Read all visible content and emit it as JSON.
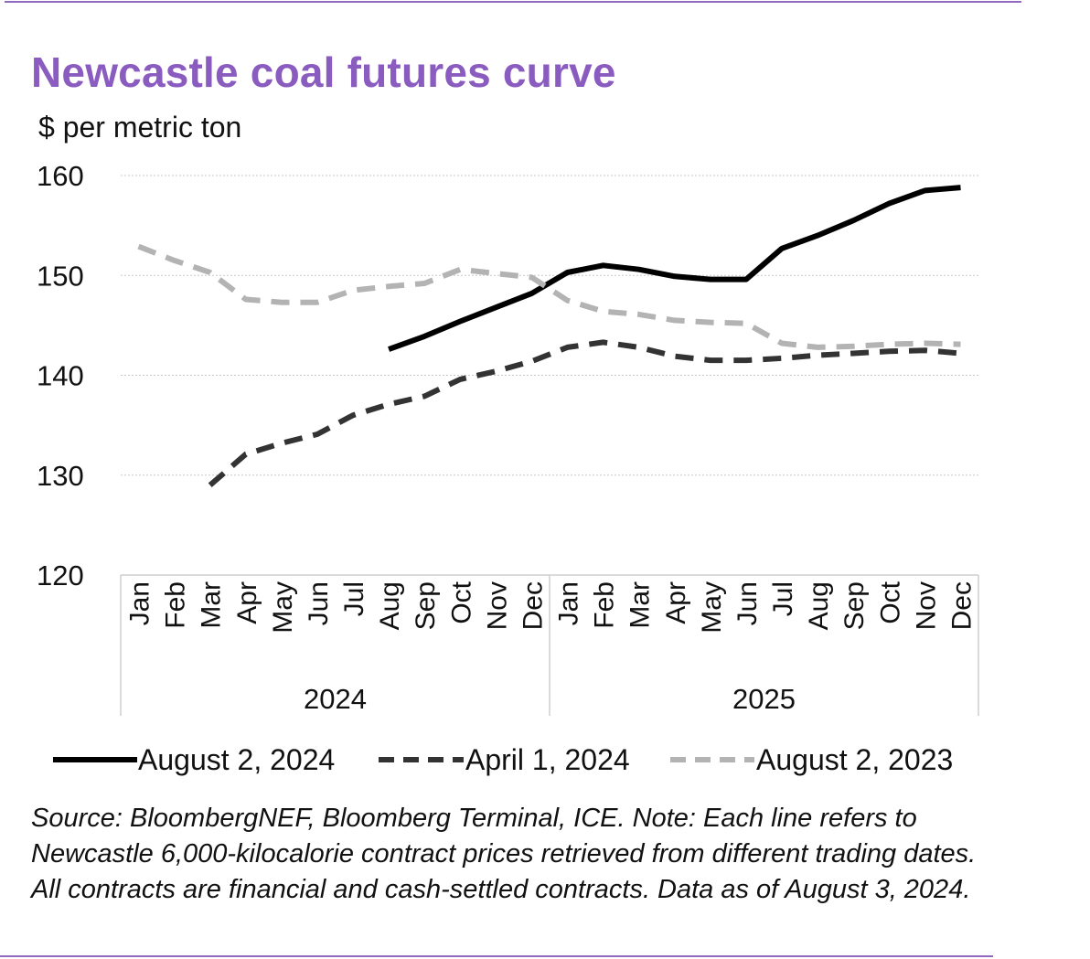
{
  "title": "Newcastle coal futures curve",
  "source_note": "Source: BloombergNEF, Bloomberg Terminal, ICE. Note: Each line refers to Newcastle 6,000-kilocalorie contract prices retrieved from different trading dates. All contracts are financial and cash-settled contracts. Data as of August 3, 2024.",
  "colors": {
    "title": "#8b5cc0",
    "rule": "#9169c0",
    "gridline": "#c8c8c8",
    "axis": "#cfcfcf",
    "text": "#111111"
  },
  "chart_data": {
    "type": "line",
    "title": "Newcastle coal futures curve",
    "ylabel": "$ per metric ton",
    "xlabel": "",
    "ylim": [
      120,
      160
    ],
    "yticks": [
      120,
      130,
      140,
      150,
      160
    ],
    "grid": true,
    "legend_position": "bottom",
    "categories": [
      "Jan",
      "Feb",
      "Mar",
      "Apr",
      "May",
      "Jun",
      "Jul",
      "Aug",
      "Sep",
      "Oct",
      "Nov",
      "Dec",
      "Jan",
      "Feb",
      "Mar",
      "Apr",
      "May",
      "Jun",
      "Jul",
      "Aug",
      "Sep",
      "Oct",
      "Nov",
      "Dec"
    ],
    "year_groups": [
      {
        "label": "2024",
        "count": 12
      },
      {
        "label": "2025",
        "count": 12
      }
    ],
    "series": [
      {
        "name": "August 2, 2024",
        "color": "#000000",
        "dash": "solid",
        "values": [
          null,
          null,
          null,
          null,
          null,
          null,
          null,
          142.6,
          143.9,
          145.4,
          146.8,
          148.2,
          150.3,
          151.0,
          150.6,
          149.9,
          149.6,
          149.6,
          152.7,
          154.0,
          155.5,
          157.2,
          158.5,
          158.8
        ]
      },
      {
        "name": "April 1, 2024",
        "color": "#333333",
        "dash": "dashed",
        "values": [
          null,
          null,
          129.0,
          132.1,
          133.2,
          134.1,
          136.0,
          137.1,
          137.9,
          139.6,
          140.4,
          141.4,
          142.8,
          143.3,
          142.8,
          141.9,
          141.5,
          141.5,
          141.7,
          142.0,
          142.2,
          142.4,
          142.5,
          142.2
        ]
      },
      {
        "name": "August 2, 2023",
        "color": "#b3b3b3",
        "dash": "dashed",
        "values": [
          152.9,
          151.5,
          150.3,
          147.6,
          147.3,
          147.3,
          148.5,
          148.9,
          149.2,
          150.6,
          150.2,
          149.8,
          147.5,
          146.4,
          146.1,
          145.5,
          145.3,
          145.2,
          143.2,
          142.8,
          142.9,
          143.1,
          143.2,
          143.1
        ]
      }
    ]
  }
}
